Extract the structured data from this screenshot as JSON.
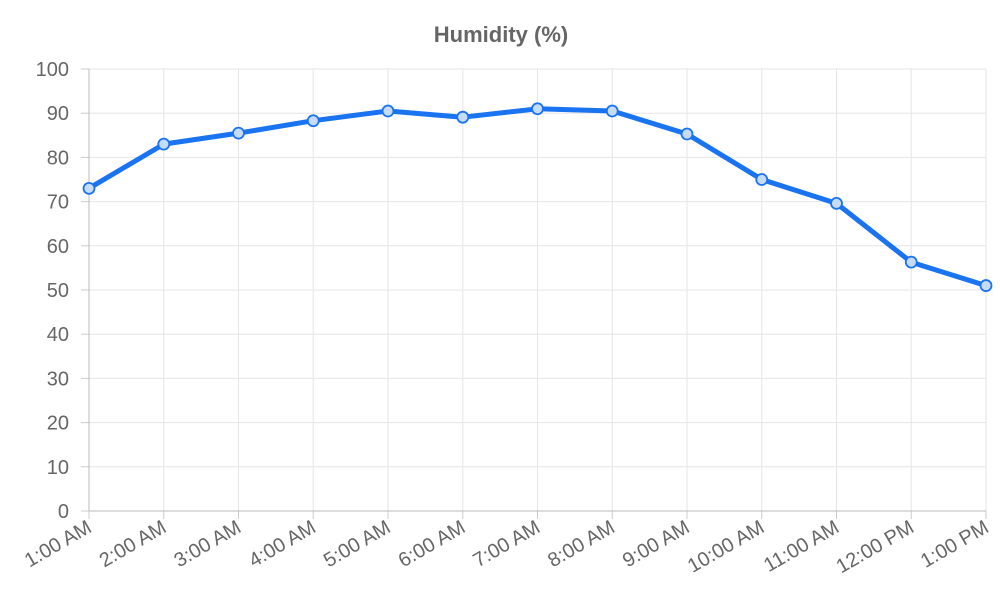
{
  "chart_data": {
    "type": "line",
    "title": "Humidity (%)",
    "xlabel": "",
    "ylabel": "",
    "categories": [
      "1:00 AM",
      "2:00 AM",
      "3:00 AM",
      "4:00 AM",
      "5:00 AM",
      "6:00 AM",
      "7:00 AM",
      "8:00 AM",
      "9:00 AM",
      "10:00 AM",
      "11:00 AM",
      "12:00 PM",
      "1:00 PM"
    ],
    "series": [
      {
        "values": [
          73,
          83,
          85.5,
          88.3,
          90.5,
          89.1,
          91,
          90.5,
          85.3,
          75,
          69.6,
          56.3,
          51
        ],
        "color": "#1a73f0"
      }
    ],
    "ylim": [
      0,
      100
    ],
    "yticks": [
      0,
      10,
      20,
      30,
      40,
      50,
      60,
      70,
      80,
      90,
      100
    ],
    "grid": true,
    "legend": "none"
  }
}
